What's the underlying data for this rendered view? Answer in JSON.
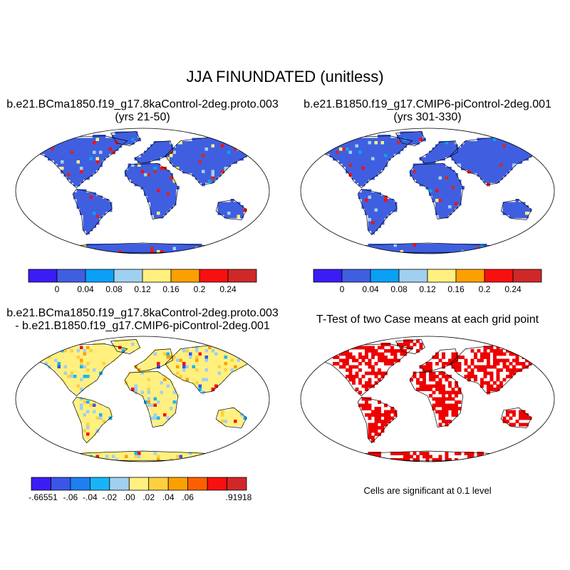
{
  "title": "JJA FINUNDATED (unitless)",
  "panels": [
    {
      "id": "case1",
      "title_line1": "b.e21.BCma1850.f19_g17.8kaControl-2deg.proto.003",
      "title_line2": "(yrs 21-50)",
      "fill": "blue-land",
      "colorbar": {
        "colors": [
          "#3a1cf5",
          "#3f5fe0",
          "#0aa0f5",
          "#a0d0f0",
          "#fff080",
          "#fca000",
          "#f81010",
          "#d02828"
        ],
        "labels": [
          "0",
          "0.04",
          "0.08",
          "0.12",
          "0.16",
          "0.2",
          "0.24"
        ]
      }
    },
    {
      "id": "case2",
      "title_line1": "b.e21.B1850.f19_g17.CMIP6-piControl-2deg.001",
      "title_line2": "(yrs 301-330)",
      "fill": "blue-land",
      "colorbar": {
        "colors": [
          "#3a1cf5",
          "#3f5fe0",
          "#0aa0f5",
          "#a0d0f0",
          "#fff080",
          "#fca000",
          "#f81010",
          "#d02828"
        ],
        "labels": [
          "0",
          "0.04",
          "0.08",
          "0.12",
          "0.16",
          "0.2",
          "0.24"
        ]
      }
    },
    {
      "id": "diff",
      "title_line1": "b.e21.BCma1850.f19_g17.8kaControl-2deg.proto.003",
      "title_line2": "- b.e21.B1850.f19_g17.CMIP6-piControl-2deg.001",
      "fill": "yellow-land",
      "colorbar": {
        "colors": [
          "#3a1cf5",
          "#3a55e8",
          "#1e7ff0",
          "#18b4f8",
          "#a0d0f0",
          "#fff080",
          "#fcd040",
          "#fca000",
          "#fc6000",
          "#f81010",
          "#d02828"
        ],
        "labels": [
          "-.66551",
          "-.06",
          "-.04",
          "-.02",
          ".00",
          ".02",
          ".04",
          ".06",
          ".91918"
        ]
      }
    },
    {
      "id": "ttest",
      "title_line1": "T-Test of two Case means at each grid point",
      "note": "Cells are significant at 0.1 level",
      "fill": "red-significance"
    }
  ]
}
